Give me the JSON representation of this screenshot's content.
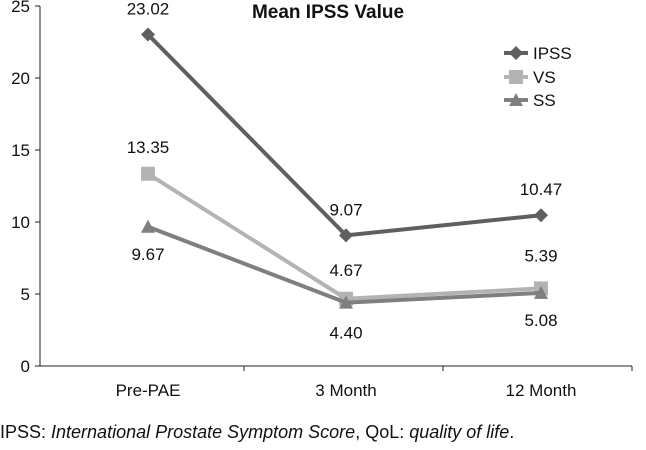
{
  "chart_data": {
    "type": "line",
    "title": "Mean IPSS Value",
    "categories": [
      "Pre-PAE",
      "3 Month",
      "12 Month"
    ],
    "ylim": [
      0,
      25
    ],
    "yticks": [
      0,
      5,
      10,
      15,
      20,
      25
    ],
    "xlabel": "",
    "ylabel": "",
    "grid": false,
    "legend_position": "top-right",
    "series": [
      {
        "name": "IPSS",
        "values": [
          23.02,
          9.07,
          10.47
        ],
        "labels": [
          "23.02",
          "9.07",
          "10.47"
        ],
        "marker": "diamond",
        "color": "#5f5f5f"
      },
      {
        "name": "VS",
        "values": [
          13.35,
          4.67,
          5.39
        ],
        "labels": [
          "13.35",
          "4.67",
          "5.39"
        ],
        "marker": "square",
        "color": "#b3b3b3"
      },
      {
        "name": "SS",
        "values": [
          9.67,
          4.4,
          5.08
        ],
        "labels": [
          "9.67",
          "4.40",
          "5.08"
        ],
        "marker": "triangle",
        "color": "#7f7f7f"
      }
    ]
  },
  "caption": {
    "part1": "IPSS: ",
    "part2": "International Prostate Symptom Score",
    "part3": ", QoL: ",
    "part4": "quality of life",
    "part5": "."
  }
}
